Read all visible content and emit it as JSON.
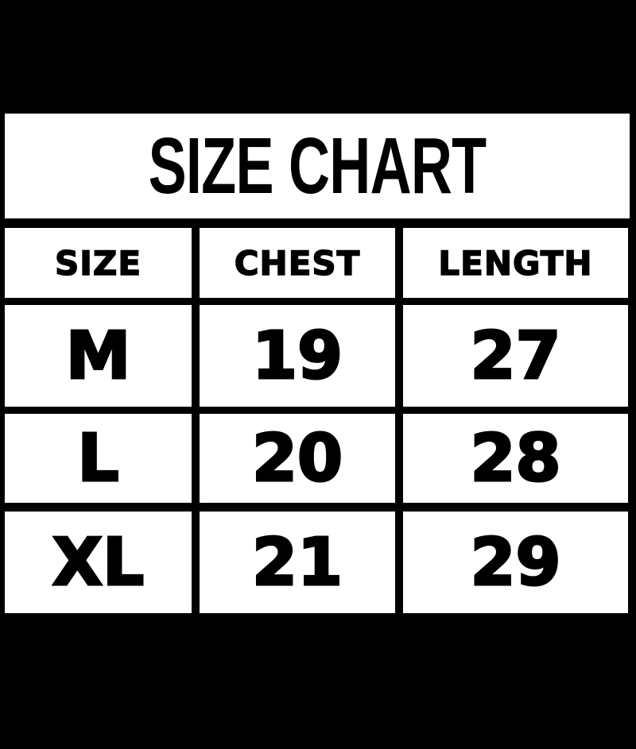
{
  "title": "SIZE CHART",
  "headers": [
    "SIZE",
    "CHEST",
    "LENGTH"
  ],
  "rows": [
    [
      "M",
      "19",
      "27"
    ],
    [
      "L",
      "20",
      "28"
    ],
    [
      "XL",
      "21",
      "29"
    ]
  ],
  "colors": {
    "background": "#000000",
    "cell": "#ffffff",
    "text": "#000000"
  }
}
